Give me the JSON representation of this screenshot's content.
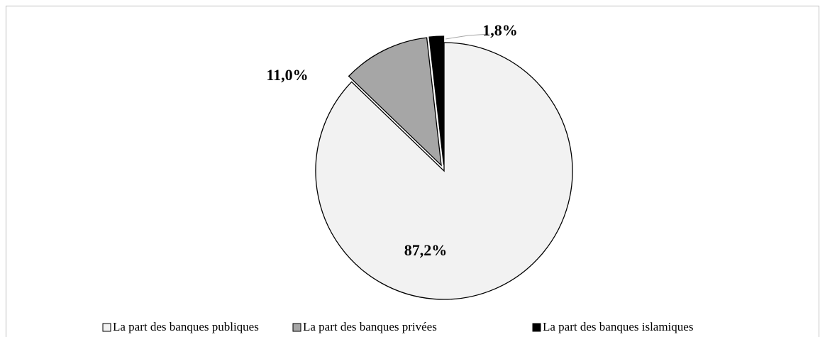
{
  "chart_data": {
    "type": "pie",
    "categories": [
      "La part des banques publiques",
      "La part des banques privées",
      "La part des banques islamiques"
    ],
    "values": [
      87.2,
      11.0,
      1.8
    ],
    "value_labels": [
      "87,2%",
      "11,0%",
      "1,8%"
    ],
    "colors": [
      "#f2f2f2",
      "#a6a6a6",
      "#000000"
    ],
    "legend": "bottom"
  }
}
